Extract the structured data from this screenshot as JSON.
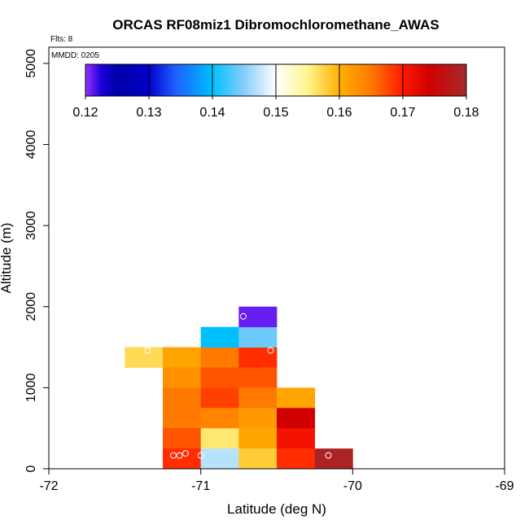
{
  "chart_data": {
    "type": "heatmap",
    "title": "ORCAS RF08miz1 Dibromochloromethane_AWAS",
    "annotations": {
      "flights": "Flts: 8",
      "mmdd": "MMDD: 0205"
    },
    "xlabel": "Latitude (deg N)",
    "ylabel": "Altitude (m)",
    "xlim": [
      -72,
      -69
    ],
    "ylim": [
      0,
      5200
    ],
    "x_ticks": [
      -72,
      -71,
      -70,
      -69
    ],
    "x_tick_labels": [
      "-72",
      "-71",
      "-70",
      "-69"
    ],
    "y_ticks": [
      0,
      1000,
      2000,
      3000,
      4000,
      5000
    ],
    "y_tick_labels": [
      "0",
      "1000",
      "2000",
      "3000",
      "4000",
      "5000"
    ],
    "colorbar": {
      "min": 0.12,
      "max": 0.18,
      "ticks": [
        0.12,
        0.13,
        0.14,
        0.15,
        0.16,
        0.17,
        0.18
      ],
      "tick_labels": [
        "0.12",
        "0.13",
        "0.14",
        "0.15",
        "0.16",
        "0.17",
        "0.18"
      ],
      "stops": [
        {
          "v": 0.12,
          "color": "#9b30ff"
        },
        {
          "v": 0.1225,
          "color": "#1a00d9"
        },
        {
          "v": 0.125,
          "color": "#0000a8"
        },
        {
          "v": 0.13,
          "color": "#0000c8"
        },
        {
          "v": 0.134,
          "color": "#1e5cff"
        },
        {
          "v": 0.14,
          "color": "#00bfff"
        },
        {
          "v": 0.145,
          "color": "#87cefa"
        },
        {
          "v": 0.15,
          "color": "#ffffff"
        },
        {
          "v": 0.155,
          "color": "#fff68f"
        },
        {
          "v": 0.16,
          "color": "#ffb000"
        },
        {
          "v": 0.165,
          "color": "#ff7a00"
        },
        {
          "v": 0.17,
          "color": "#ff1a00"
        },
        {
          "v": 0.174,
          "color": "#d10000"
        },
        {
          "v": 0.18,
          "color": "#a52a2a"
        }
      ]
    },
    "cell_size": {
      "lat": 0.25,
      "alt": 250
    },
    "cells": [
      {
        "lat": -71.375,
        "alt": 1375,
        "value": 0.157
      },
      {
        "lat": -71.125,
        "alt": 1375,
        "value": 0.161
      },
      {
        "lat": -70.875,
        "alt": 1375,
        "value": 0.165
      },
      {
        "lat": -70.625,
        "alt": 1375,
        "value": 0.169
      },
      {
        "lat": -70.875,
        "alt": 1625,
        "value": 0.14
      },
      {
        "lat": -70.625,
        "alt": 1625,
        "value": 0.144
      },
      {
        "lat": -70.625,
        "alt": 1875,
        "value": 0.121
      },
      {
        "lat": -71.125,
        "alt": 1125,
        "value": 0.163
      },
      {
        "lat": -70.875,
        "alt": 1125,
        "value": 0.167
      },
      {
        "lat": -70.625,
        "alt": 1125,
        "value": 0.167
      },
      {
        "lat": -71.125,
        "alt": 875,
        "value": 0.165
      },
      {
        "lat": -70.875,
        "alt": 875,
        "value": 0.168
      },
      {
        "lat": -70.625,
        "alt": 875,
        "value": 0.165
      },
      {
        "lat": -70.375,
        "alt": 875,
        "value": 0.161
      },
      {
        "lat": -71.125,
        "alt": 625,
        "value": 0.165
      },
      {
        "lat": -70.875,
        "alt": 625,
        "value": 0.164
      },
      {
        "lat": -70.625,
        "alt": 625,
        "value": 0.162
      },
      {
        "lat": -70.375,
        "alt": 625,
        "value": 0.174
      },
      {
        "lat": -71.125,
        "alt": 375,
        "value": 0.167
      },
      {
        "lat": -70.875,
        "alt": 375,
        "value": 0.156
      },
      {
        "lat": -70.625,
        "alt": 375,
        "value": 0.161
      },
      {
        "lat": -70.375,
        "alt": 375,
        "value": 0.171
      },
      {
        "lat": -71.125,
        "alt": 125,
        "value": 0.169
      },
      {
        "lat": -70.875,
        "alt": 125,
        "value": 0.147
      },
      {
        "lat": -70.625,
        "alt": 125,
        "value": 0.158
      },
      {
        "lat": -70.375,
        "alt": 125,
        "value": 0.169
      },
      {
        "lat": -70.125,
        "alt": 125,
        "value": 0.179
      }
    ],
    "sample_points": [
      {
        "lat": -71.35,
        "alt": 1460
      },
      {
        "lat": -70.72,
        "alt": 1880
      },
      {
        "lat": -70.54,
        "alt": 1460
      },
      {
        "lat": -71.18,
        "alt": 165
      },
      {
        "lat": -71.14,
        "alt": 165
      },
      {
        "lat": -71.1,
        "alt": 190
      },
      {
        "lat": -71.0,
        "alt": 165
      },
      {
        "lat": -70.16,
        "alt": 165
      }
    ]
  }
}
